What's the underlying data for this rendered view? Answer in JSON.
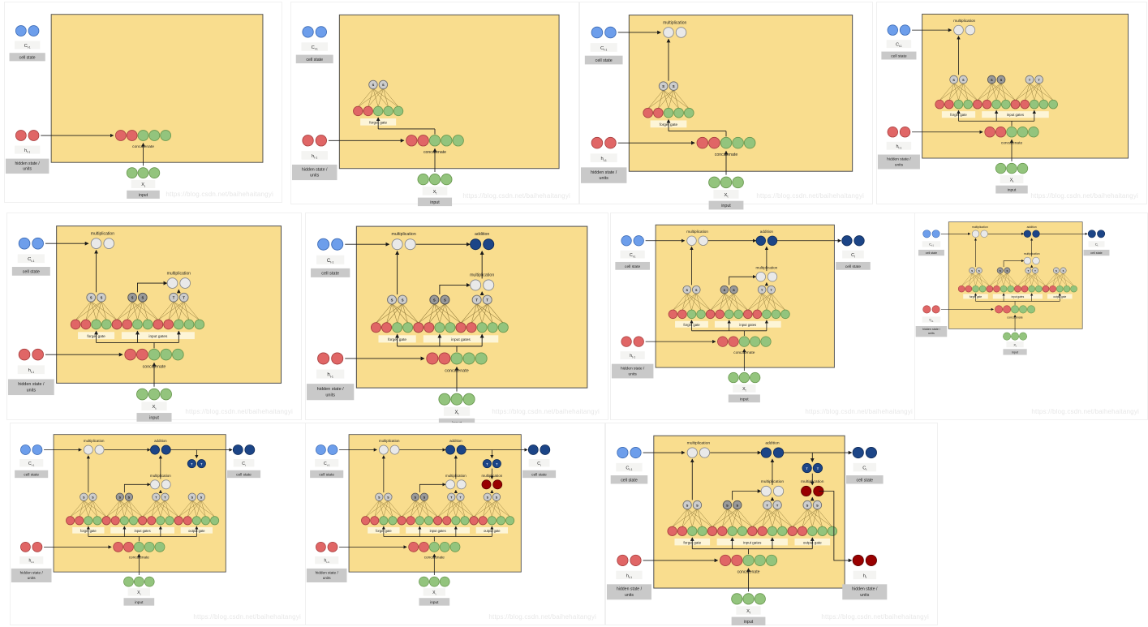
{
  "watermark": "https://blog.csdn.net/baihehaitangyi",
  "labels": {
    "multiplication": "multiplication",
    "addition": "addition",
    "concatenate": "concatenate",
    "forget_gate": "forget gate",
    "input_gates": "input gates",
    "output_gate": "output gate",
    "cell_state": "cell state",
    "hidden_state_line1": "hidden state /",
    "hidden_state_line2": "units",
    "input": "input",
    "sigmoid_letter": "S",
    "tanh_letter": "T",
    "c_prev": {
      "base": "C",
      "sub": "t-1"
    },
    "h_prev": {
      "base": "h",
      "sub": "t-1"
    },
    "x_t": {
      "base": "X",
      "sub": "t"
    },
    "c_t": {
      "base": "C",
      "sub": "t"
    },
    "h_t": {
      "base": "h",
      "sub": "t"
    }
  },
  "colors": {
    "box_fill": "#f9dd8e",
    "box_stroke": "#4a4a4a",
    "blue": "#6d9eeb",
    "blue_stroke": "#3c6bb5",
    "red": "#e06666",
    "red_stroke": "#a83f3f",
    "green": "#93c47d",
    "green_stroke": "#69984f",
    "gray_light": "#cccccc",
    "gray_light_stroke": "#6f6f6f",
    "gray_dark": "#999999",
    "gray_dark_stroke": "#4f4f4f",
    "mult": "#e9e9e9",
    "mult_stroke": "#8a8a8a",
    "navy": "#1c4587",
    "navy_stroke": "#0e2a57",
    "maroon": "#990000",
    "maroon_stroke": "#5c0000",
    "chip_bg": "#f4f4f2",
    "badge_bg": "#c9c9c9",
    "gate_badge_bg": "#fdf5d7",
    "arrow": "#1a1a1a",
    "net_line": "#8a7435",
    "text": "#222222"
  },
  "panels": [
    {
      "step": 1,
      "features": []
    },
    {
      "step": 2,
      "features": [
        "forget_gate"
      ]
    },
    {
      "step": 3,
      "features": [
        "forget_gate",
        "cell_multiplication"
      ]
    },
    {
      "step": 4,
      "features": [
        "forget_gate",
        "cell_multiplication",
        "input_gates"
      ]
    },
    {
      "step": 5,
      "features": [
        "forget_gate",
        "cell_multiplication",
        "input_gates",
        "input_multiplication"
      ]
    },
    {
      "step": 6,
      "features": [
        "forget_gate",
        "cell_multiplication",
        "input_gates",
        "input_multiplication",
        "addition"
      ]
    },
    {
      "step": 7,
      "features": [
        "forget_gate",
        "cell_multiplication",
        "input_gates",
        "input_multiplication",
        "addition",
        "cell_state_output"
      ]
    },
    {
      "step": 8,
      "features": [
        "forget_gate",
        "cell_multiplication",
        "input_gates",
        "input_multiplication",
        "addition",
        "cell_state_output",
        "output_gate"
      ]
    },
    {
      "step": 9,
      "features": [
        "forget_gate",
        "cell_multiplication",
        "input_gates",
        "input_multiplication",
        "addition",
        "cell_state_output",
        "output_gate",
        "tanh"
      ]
    },
    {
      "step": 10,
      "features": [
        "forget_gate",
        "cell_multiplication",
        "input_gates",
        "input_multiplication",
        "addition",
        "cell_state_output",
        "output_gate",
        "tanh",
        "output_multiplication"
      ]
    },
    {
      "step": 11,
      "features": [
        "forget_gate",
        "cell_multiplication",
        "input_gates",
        "input_multiplication",
        "addition",
        "cell_state_output",
        "output_gate",
        "tanh",
        "output_multiplication",
        "hidden_state_output"
      ]
    }
  ]
}
